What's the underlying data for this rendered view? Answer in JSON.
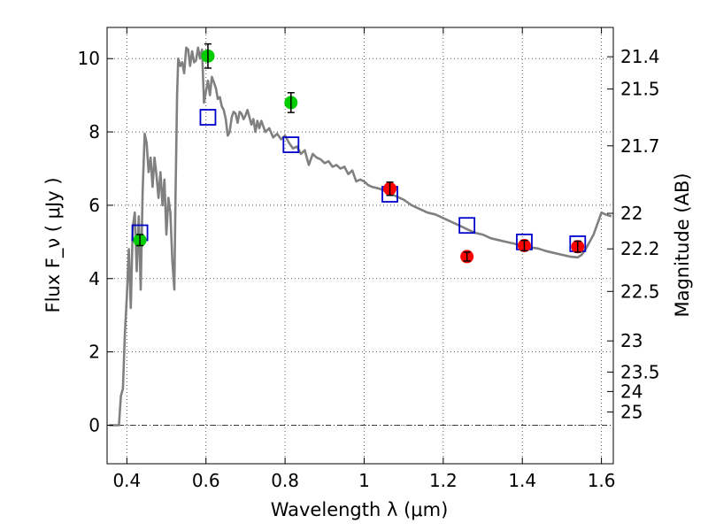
{
  "chart_data": {
    "type": "scatter",
    "title": "",
    "xlabel": "Wavelength  λ (μm)",
    "ylabel": "Flux  F_ν  ( μJy )",
    "y2label": "Magnitude (AB)",
    "xlim": [
      0.35,
      1.63
    ],
    "ylim": [
      -1.05,
      10.85
    ],
    "grid": true,
    "legend": "none",
    "x_ticks": [
      0.4,
      0.6,
      0.8,
      1.0,
      1.2,
      1.4,
      1.6
    ],
    "x_tick_labels": [
      "0.4",
      "0.6",
      "0.8",
      "1",
      "1.2",
      "1.4",
      "1.6"
    ],
    "y_ticks": [
      0,
      2,
      4,
      6,
      8,
      10
    ],
    "y_tick_labels": [
      "0",
      "2",
      "4",
      "6",
      "8",
      "10"
    ],
    "mag_ticks": [
      {
        "label": "21.4",
        "flux": 10.05
      },
      {
        "label": "21.5",
        "flux": 9.17
      },
      {
        "label": "21.7",
        "flux": 7.62
      },
      {
        "label": "22",
        "flux": 5.78
      },
      {
        "label": "22.2",
        "flux": 4.81
      },
      {
        "label": "22.5",
        "flux": 3.65
      },
      {
        "label": "23",
        "flux": 2.3
      },
      {
        "label": "23.5",
        "flux": 1.45
      },
      {
        "label": "24",
        "flux": 0.92
      },
      {
        "label": "25",
        "flux": 0.36
      }
    ],
    "series": [
      {
        "kind": "line",
        "color": "#808080",
        "points": [
          [
            0.355,
            0.0
          ],
          [
            0.38,
            0.0
          ],
          [
            0.385,
            0.8
          ],
          [
            0.39,
            1.0
          ],
          [
            0.395,
            2.5
          ],
          [
            0.4,
            3.5
          ],
          [
            0.405,
            4.8
          ],
          [
            0.41,
            3.2
          ],
          [
            0.415,
            5.4
          ],
          [
            0.42,
            5.8
          ],
          [
            0.425,
            4.2
          ],
          [
            0.43,
            5.7
          ],
          [
            0.435,
            3.7
          ],
          [
            0.44,
            6.4
          ],
          [
            0.445,
            7.95
          ],
          [
            0.45,
            7.7
          ],
          [
            0.455,
            6.9
          ],
          [
            0.46,
            7.3
          ],
          [
            0.465,
            6.5
          ],
          [
            0.47,
            7.3
          ],
          [
            0.475,
            6.8
          ],
          [
            0.48,
            6.2
          ],
          [
            0.485,
            6.9
          ],
          [
            0.49,
            6.0
          ],
          [
            0.495,
            6.7
          ],
          [
            0.5,
            5.2
          ],
          [
            0.505,
            6.2
          ],
          [
            0.51,
            5.8
          ],
          [
            0.515,
            4.5
          ],
          [
            0.52,
            3.7
          ],
          [
            0.523,
            6.2
          ],
          [
            0.527,
            9.0
          ],
          [
            0.53,
            10.0
          ],
          [
            0.535,
            9.8
          ],
          [
            0.54,
            9.9
          ],
          [
            0.545,
            9.6
          ],
          [
            0.55,
            10.3
          ],
          [
            0.555,
            10.25
          ],
          [
            0.56,
            9.8
          ],
          [
            0.565,
            10.2
          ],
          [
            0.57,
            9.9
          ],
          [
            0.575,
            9.95
          ],
          [
            0.58,
            10.3
          ],
          [
            0.585,
            10.0
          ],
          [
            0.59,
            10.25
          ],
          [
            0.595,
            8.8
          ],
          [
            0.6,
            9.1
          ],
          [
            0.605,
            9.4
          ],
          [
            0.61,
            9.0
          ],
          [
            0.615,
            9.5
          ],
          [
            0.62,
            9.35
          ],
          [
            0.625,
            9.2
          ],
          [
            0.63,
            8.9
          ],
          [
            0.635,
            8.95
          ],
          [
            0.64,
            8.7
          ],
          [
            0.645,
            8.6
          ],
          [
            0.65,
            8.35
          ],
          [
            0.655,
            7.9
          ],
          [
            0.66,
            8.0
          ],
          [
            0.665,
            8.4
          ],
          [
            0.67,
            8.55
          ],
          [
            0.675,
            8.5
          ],
          [
            0.68,
            8.25
          ],
          [
            0.685,
            8.55
          ],
          [
            0.69,
            8.5
          ],
          [
            0.695,
            8.35
          ],
          [
            0.7,
            8.45
          ],
          [
            0.705,
            8.6
          ],
          [
            0.71,
            8.4
          ],
          [
            0.715,
            8.2
          ],
          [
            0.72,
            8.35
          ],
          [
            0.725,
            8.0
          ],
          [
            0.73,
            8.3
          ],
          [
            0.735,
            8.1
          ],
          [
            0.74,
            8.3
          ],
          [
            0.75,
            8.0
          ],
          [
            0.76,
            8.1
          ],
          [
            0.77,
            7.85
          ],
          [
            0.78,
            7.95
          ],
          [
            0.79,
            7.8
          ],
          [
            0.8,
            7.9
          ],
          [
            0.81,
            7.7
          ],
          [
            0.82,
            7.55
          ],
          [
            0.83,
            7.6
          ],
          [
            0.84,
            7.4
          ],
          [
            0.85,
            7.5
          ],
          [
            0.86,
            7.1
          ],
          [
            0.87,
            7.4
          ],
          [
            0.88,
            7.3
          ],
          [
            0.89,
            7.25
          ],
          [
            0.9,
            7.15
          ],
          [
            0.91,
            7.2
          ],
          [
            0.92,
            7.05
          ],
          [
            0.93,
            7.1
          ],
          [
            0.94,
            7.0
          ],
          [
            0.95,
            7.05
          ],
          [
            0.96,
            6.85
          ],
          [
            0.97,
            6.95
          ],
          [
            0.98,
            6.65
          ],
          [
            0.99,
            6.7
          ],
          [
            1.0,
            6.65
          ],
          [
            1.01,
            6.55
          ],
          [
            1.02,
            6.5
          ],
          [
            1.04,
            6.45
          ],
          [
            1.06,
            6.35
          ],
          [
            1.08,
            6.25
          ],
          [
            1.1,
            6.15
          ],
          [
            1.12,
            6.0
          ],
          [
            1.14,
            5.9
          ],
          [
            1.16,
            5.8
          ],
          [
            1.18,
            5.75
          ],
          [
            1.2,
            5.65
          ],
          [
            1.22,
            5.55
          ],
          [
            1.24,
            5.45
          ],
          [
            1.26,
            5.35
          ],
          [
            1.28,
            5.25
          ],
          [
            1.3,
            5.2
          ],
          [
            1.32,
            5.1
          ],
          [
            1.34,
            5.05
          ],
          [
            1.36,
            5.0
          ],
          [
            1.38,
            4.95
          ],
          [
            1.4,
            4.9
          ],
          [
            1.42,
            4.85
          ],
          [
            1.44,
            4.82
          ],
          [
            1.46,
            4.75
          ],
          [
            1.48,
            4.7
          ],
          [
            1.5,
            4.65
          ],
          [
            1.52,
            4.6
          ],
          [
            1.54,
            4.58
          ],
          [
            1.55,
            4.65
          ],
          [
            1.56,
            4.8
          ],
          [
            1.58,
            5.2
          ],
          [
            1.6,
            5.8
          ],
          [
            1.61,
            5.75
          ],
          [
            1.625,
            5.7
          ]
        ]
      },
      {
        "kind": "markers",
        "marker": "square",
        "color": "#0000cc",
        "points": [
          [
            0.433,
            5.25
          ],
          [
            0.605,
            8.4
          ],
          [
            0.815,
            7.65
          ],
          [
            1.065,
            6.3
          ],
          [
            1.26,
            5.45
          ],
          [
            1.405,
            5.0
          ],
          [
            1.54,
            4.95
          ]
        ]
      },
      {
        "kind": "markers",
        "marker": "circle",
        "color": "#00cc00",
        "points": [
          [
            0.433,
            5.05,
            0.15
          ],
          [
            0.605,
            10.07,
            0.33
          ],
          [
            0.815,
            8.8,
            0.27
          ]
        ]
      },
      {
        "kind": "markers",
        "marker": "circle",
        "color": "#ff0000",
        "points": [
          [
            1.065,
            6.45,
            0.18
          ],
          [
            1.26,
            4.6,
            0.12
          ],
          [
            1.405,
            4.9,
            0.14
          ],
          [
            1.54,
            4.87,
            0.15
          ]
        ]
      }
    ]
  }
}
